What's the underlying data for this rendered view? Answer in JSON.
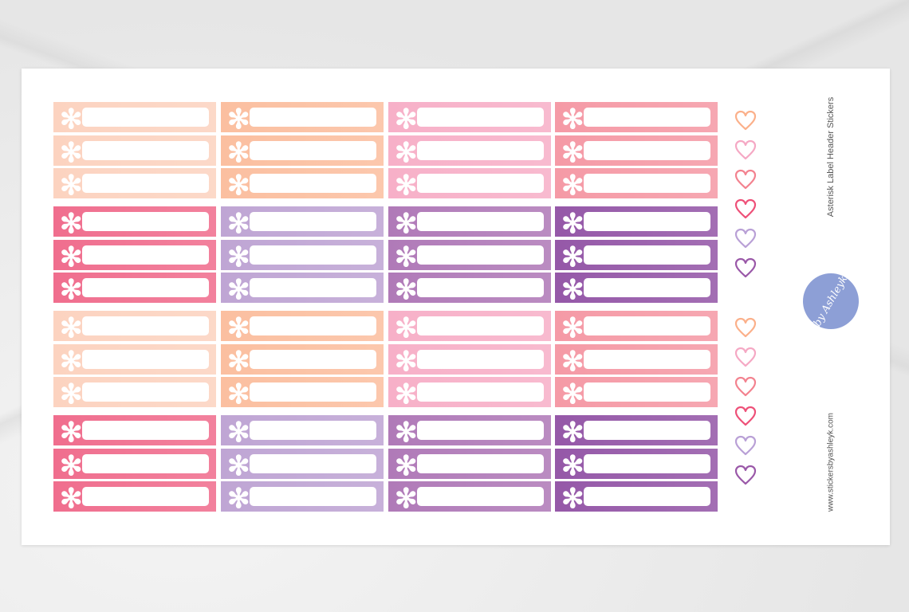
{
  "sheet": {
    "title": "Asterisk Label Header Stickers",
    "website": "www.stickersbyashleyk.com",
    "logo_text": "by Ashleyk",
    "logo_color": "#8d9fd6"
  },
  "stickers": {
    "icon": "asterisk-icon",
    "glyph": "✻",
    "groups": [
      {
        "colors": [
          "#fcd3c0",
          "#fbbfa0",
          "#f7b0c8",
          "#f59aa6"
        ],
        "rows": 3
      },
      {
        "colors": [
          "#f06e8e",
          "#bfa5d4",
          "#b07ab8",
          "#9558a8"
        ],
        "rows": 3
      },
      {
        "colors": [
          "#fcd3c0",
          "#fbbfa0",
          "#f7b0c8",
          "#f59aa6"
        ],
        "rows": 3
      },
      {
        "colors": [
          "#f06e8e",
          "#bfa5d4",
          "#b07ab8",
          "#9558a8"
        ],
        "rows": 3
      }
    ]
  },
  "hearts": {
    "icon": "heart-outline-icon",
    "colors": [
      "#fbb08a",
      "#f5a8c4",
      "#f3828f",
      "#ee5078",
      "#b9a0d6",
      "#9a58a8"
    ],
    "sets": 2
  }
}
